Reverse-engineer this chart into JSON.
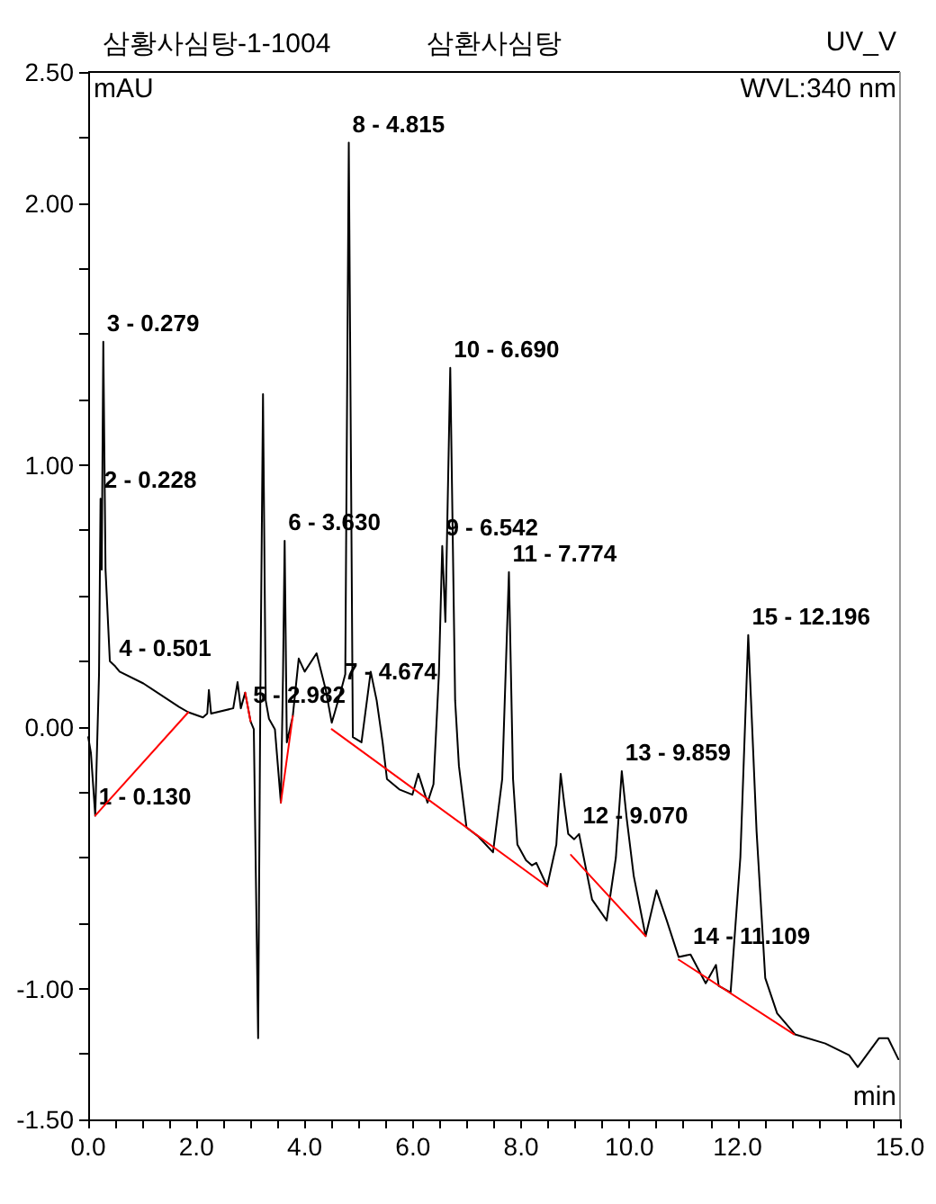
{
  "chart_data": {
    "type": "line",
    "title": "삼황사심탕-1-1004",
    "subtitle": "삼환사심탕",
    "xlabel": "min",
    "ylabel": "mAU",
    "xlim": [
      0,
      15
    ],
    "ylim": [
      -1.5,
      2.5
    ],
    "xticks": [
      {
        "value": 0,
        "label": "0.0"
      },
      {
        "value": 0.5,
        "label": null
      },
      {
        "value": 1,
        "label": null
      },
      {
        "value": 1.5,
        "label": null
      },
      {
        "value": 2,
        "label": "2.0"
      },
      {
        "value": 2.5,
        "label": null
      },
      {
        "value": 3,
        "label": null
      },
      {
        "value": 3.5,
        "label": null
      },
      {
        "value": 4,
        "label": "4.0"
      },
      {
        "value": 4.5,
        "label": null
      },
      {
        "value": 5,
        "label": null
      },
      {
        "value": 5.5,
        "label": null
      },
      {
        "value": 6,
        "label": "6.0"
      },
      {
        "value": 6.5,
        "label": null
      },
      {
        "value": 7,
        "label": null
      },
      {
        "value": 7.5,
        "label": null
      },
      {
        "value": 8,
        "label": "8.0"
      },
      {
        "value": 8.5,
        "label": null
      },
      {
        "value": 9,
        "label": null
      },
      {
        "value": 9.5,
        "label": null
      },
      {
        "value": 10,
        "label": "10.0"
      },
      {
        "value": 10.5,
        "label": null
      },
      {
        "value": 11,
        "label": null
      },
      {
        "value": 11.5,
        "label": null
      },
      {
        "value": 12,
        "label": "12.0"
      },
      {
        "value": 12.5,
        "label": null
      },
      {
        "value": 13,
        "label": null
      },
      {
        "value": 13.5,
        "label": null
      },
      {
        "value": 14,
        "label": null
      },
      {
        "value": 14.5,
        "label": null
      },
      {
        "value": 15,
        "label": "15.0"
      }
    ],
    "yticks": [
      {
        "value": -1.5,
        "label": "-1.50"
      },
      {
        "value": -1.25,
        "label": null
      },
      {
        "value": -1,
        "label": "-1.00"
      },
      {
        "value": -0.75,
        "label": null
      },
      {
        "value": -0.5,
        "label": null
      },
      {
        "value": -0.25,
        "label": null
      },
      {
        "value": 0,
        "label": "0.00"
      },
      {
        "value": 0.25,
        "label": null
      },
      {
        "value": 0.5,
        "label": null
      },
      {
        "value": 0.75,
        "label": null
      },
      {
        "value": 1,
        "label": "1.00"
      },
      {
        "value": 1.25,
        "label": null
      },
      {
        "value": 1.5,
        "label": null
      },
      {
        "value": 1.75,
        "label": null
      },
      {
        "value": 2,
        "label": "2.00"
      },
      {
        "value": 2.25,
        "label": null
      },
      {
        "value": 2.5,
        "label": "2.50"
      }
    ],
    "grid": false,
    "marker": "none",
    "line_style": "solid",
    "series": [
      {
        "color": "#000000",
        "x": [
          0,
          0.05,
          0.13,
          0.2,
          0.228,
          0.25,
          0.279,
          0.32,
          0.4,
          0.501,
          0.58,
          1.02,
          1.68,
          1.85,
          2.12,
          2.2,
          2.23,
          2.27,
          2.68,
          2.76,
          2.82,
          2.9,
          3.0,
          3.06,
          3.14,
          3.18,
          3.23,
          3.28,
          3.34,
          3.45,
          3.56,
          3.6,
          3.63,
          3.67,
          3.78,
          3.89,
          4.0,
          4.22,
          4.39,
          4.5,
          4.55,
          4.674,
          4.75,
          4.815,
          4.89,
          5.05,
          5.22,
          5.33,
          5.44,
          5.52,
          5.75,
          5.99,
          6.1,
          6.27,
          6.38,
          6.48,
          6.542,
          6.6,
          6.69,
          6.78,
          6.85,
          6.99,
          7.21,
          7.48,
          7.65,
          7.774,
          7.85,
          7.93,
          8.09,
          8.2,
          8.28,
          8.48,
          8.65,
          8.73,
          8.8,
          8.87,
          8.98,
          9.07,
          9.31,
          9.58,
          9.75,
          9.859,
          9.95,
          10.08,
          10.3,
          10.5,
          10.69,
          10.91,
          11.13,
          11.41,
          11.6,
          11.65,
          11.87,
          12.05,
          12.196,
          12.35,
          12.51,
          12.73,
          13.06,
          13.62,
          14.06,
          14.22,
          14.61,
          14.78,
          14.97
        ],
        "values": [
          -0.04,
          -0.1,
          -0.34,
          0.2,
          0.87,
          0.6,
          1.47,
          0.6,
          0.25,
          0.23,
          0.21,
          0.165,
          0.075,
          0.055,
          0.035,
          0.05,
          0.14,
          0.05,
          0.07,
          0.17,
          0.07,
          0.13,
          0.02,
          -0.01,
          -1.19,
          0.1,
          1.27,
          0.1,
          0.03,
          -0.01,
          -0.29,
          0.2,
          0.71,
          -0.06,
          0.04,
          0.26,
          0.21,
          0.28,
          0.14,
          0.015,
          0.05,
          0.14,
          0.2,
          2.23,
          -0.04,
          -0.06,
          0.21,
          0.1,
          -0.06,
          -0.2,
          -0.24,
          -0.26,
          -0.18,
          -0.29,
          -0.22,
          0.2,
          0.69,
          0.4,
          1.37,
          0.1,
          -0.15,
          -0.385,
          -0.42,
          -0.48,
          -0.2,
          0.59,
          -0.2,
          -0.45,
          -0.51,
          -0.53,
          -0.52,
          -0.61,
          -0.45,
          -0.18,
          -0.3,
          -0.41,
          -0.43,
          -0.41,
          -0.66,
          -0.74,
          -0.5,
          -0.17,
          -0.35,
          -0.57,
          -0.8,
          -0.625,
          -0.74,
          -0.88,
          -0.87,
          -0.98,
          -0.91,
          -0.99,
          -1.015,
          -0.5,
          0.35,
          -0.4,
          -0.96,
          -1.095,
          -1.175,
          -1.21,
          -1.255,
          -1.3,
          -1.19,
          -1.19,
          -1.27
        ]
      },
      {
        "color": "#ff0000",
        "x": [
          0.13,
          1.85,
          2.0,
          2.9,
          3.0,
          3.3,
          3.56,
          3.78,
          4.0,
          4.5,
          8.48,
          8.7,
          8.92,
          10.3,
          10.6,
          10.91,
          13.04
        ],
        "values": [
          -0.34,
          0.055,
          null,
          0.13,
          0.02,
          null,
          -0.29,
          0.04,
          null,
          -0.01,
          -0.61,
          null,
          -0.49,
          -0.8,
          null,
          -0.89,
          -1.175
        ]
      }
    ],
    "annotations": [
      "UV_V",
      "WVL:340 nm",
      {
        "text": "1 - 0.130",
        "x": 0.13,
        "y": -0.34
      },
      {
        "text": "2 - 0.228",
        "x": 0.228,
        "y": 0.87
      },
      {
        "text": "3 - 0.279",
        "x": 0.279,
        "y": 1.47
      },
      {
        "text": "4 - 0.501",
        "x": 0.501,
        "y": 0.23
      },
      {
        "text": "5 - 2.982",
        "x": 2.982,
        "y": 0.05
      },
      {
        "text": "6 - 3.630",
        "x": 3.63,
        "y": 0.71
      },
      {
        "text": "7 - 4.674",
        "x": 4.674,
        "y": 0.14
      },
      {
        "text": "8 - 4.815",
        "x": 4.815,
        "y": 2.23
      },
      {
        "text": "9 - 6.542",
        "x": 6.542,
        "y": 0.69
      },
      {
        "text": "10 - 6.690",
        "x": 6.69,
        "y": 1.37
      },
      {
        "text": "11 - 7.774",
        "x": 7.774,
        "y": 0.59
      },
      {
        "text": "12 - 9.070",
        "x": 9.07,
        "y": -0.41
      },
      {
        "text": "13 - 9.859",
        "x": 9.859,
        "y": -0.17
      },
      {
        "text": "14 - 11.109",
        "x": 11.109,
        "y": -0.87
      },
      {
        "text": "15 - 12.196",
        "x": 12.196,
        "y": 0.35
      }
    ]
  }
}
